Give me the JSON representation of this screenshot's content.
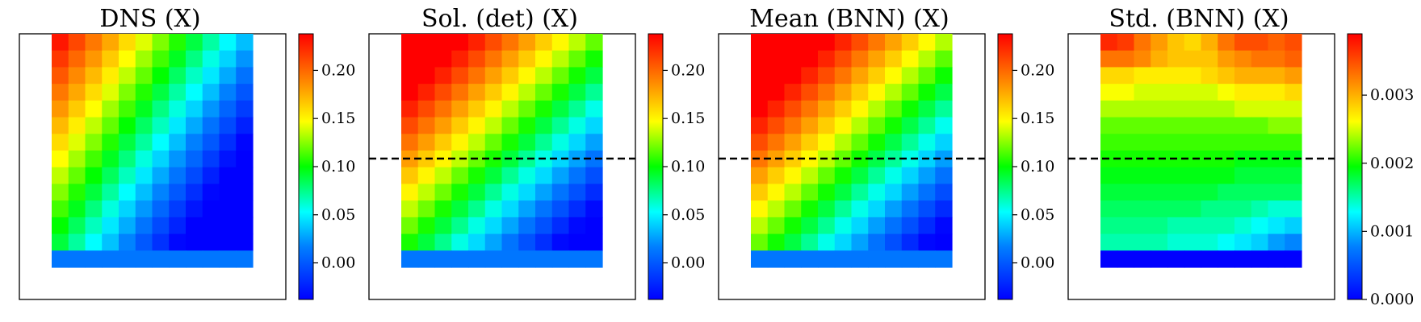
{
  "chart_data": [
    {
      "type": "heatmap",
      "title": "DNS (X)",
      "grid_rows": 14,
      "grid_cols": 12,
      "colorbar": {
        "min": -0.038,
        "max": 0.238,
        "ticks": [
          "0.00",
          "0.05",
          "0.10",
          "0.15",
          "0.20"
        ],
        "tick_values": [
          0.0,
          0.05,
          0.1,
          0.15,
          0.2
        ]
      },
      "dashed_line": false,
      "values": [
        [
          0.23,
          0.212,
          0.194,
          0.177,
          0.159,
          0.141,
          0.123,
          0.106,
          0.088,
          0.07,
          0.052,
          0.035
        ],
        [
          0.218,
          0.2,
          0.183,
          0.165,
          0.147,
          0.129,
          0.112,
          0.094,
          0.076,
          0.058,
          0.041,
          0.023
        ],
        [
          0.206,
          0.188,
          0.171,
          0.153,
          0.135,
          0.118,
          0.1,
          0.082,
          0.064,
          0.047,
          0.029,
          0.011
        ],
        [
          0.194,
          0.177,
          0.159,
          0.141,
          0.123,
          0.106,
          0.088,
          0.07,
          0.053,
          0.035,
          0.017,
          -0.001
        ],
        [
          0.183,
          0.165,
          0.147,
          0.129,
          0.112,
          0.094,
          0.076,
          0.059,
          0.041,
          0.023,
          0.005,
          -0.012
        ],
        [
          0.171,
          0.153,
          0.135,
          0.118,
          0.1,
          0.082,
          0.065,
          0.047,
          0.029,
          0.011,
          -0.006,
          -0.024
        ],
        [
          0.159,
          0.141,
          0.124,
          0.106,
          0.088,
          0.071,
          0.053,
          0.035,
          0.017,
          0.0,
          -0.018,
          -0.036
        ],
        [
          0.147,
          0.13,
          0.112,
          0.094,
          0.077,
          0.059,
          0.041,
          0.023,
          0.006,
          -0.012,
          -0.03,
          -0.038
        ],
        [
          0.135,
          0.118,
          0.1,
          0.083,
          0.065,
          0.047,
          0.029,
          0.012,
          -0.006,
          -0.024,
          -0.038,
          -0.038
        ],
        [
          0.124,
          0.106,
          0.089,
          0.071,
          0.053,
          0.035,
          0.018,
          0.0,
          -0.018,
          -0.035,
          -0.038,
          -0.038
        ],
        [
          0.112,
          0.095,
          0.077,
          0.059,
          0.041,
          0.024,
          0.006,
          -0.012,
          -0.029,
          -0.038,
          -0.038,
          -0.038
        ],
        [
          0.1,
          0.083,
          0.065,
          0.047,
          0.03,
          0.012,
          -0.006,
          -0.023,
          -0.038,
          -0.038,
          -0.038,
          -0.038
        ],
        [
          0.089,
          0.071,
          0.053,
          0.036,
          0.018,
          0.0,
          -0.017,
          -0.035,
          -0.038,
          -0.038,
          -0.038,
          -0.038
        ],
        [
          0.013,
          0.013,
          0.013,
          0.013,
          0.013,
          0.013,
          0.013,
          0.013,
          0.013,
          0.013,
          0.013,
          0.013
        ]
      ]
    },
    {
      "type": "heatmap",
      "title": "Sol. (det) (X)",
      "grid_rows": 14,
      "grid_cols": 12,
      "colorbar": {
        "min": -0.038,
        "max": 0.238,
        "ticks": [
          "0.00",
          "0.05",
          "0.10",
          "0.15",
          "0.20"
        ],
        "tick_values": [
          0.0,
          0.05,
          0.1,
          0.15,
          0.2
        ]
      },
      "dashed_line": true,
      "values": [
        [
          0.238,
          0.238,
          0.238,
          0.238,
          0.226,
          0.21,
          0.195,
          0.18,
          0.164,
          0.149,
          0.134,
          0.118
        ],
        [
          0.238,
          0.238,
          0.238,
          0.226,
          0.211,
          0.195,
          0.18,
          0.165,
          0.149,
          0.134,
          0.118,
          0.103
        ],
        [
          0.238,
          0.238,
          0.226,
          0.211,
          0.196,
          0.18,
          0.165,
          0.149,
          0.134,
          0.119,
          0.103,
          0.088
        ],
        [
          0.238,
          0.226,
          0.211,
          0.196,
          0.18,
          0.165,
          0.15,
          0.134,
          0.119,
          0.104,
          0.088,
          0.073
        ],
        [
          0.226,
          0.211,
          0.196,
          0.18,
          0.165,
          0.15,
          0.134,
          0.119,
          0.104,
          0.088,
          0.073,
          0.057
        ],
        [
          0.211,
          0.196,
          0.181,
          0.165,
          0.15,
          0.135,
          0.119,
          0.104,
          0.088,
          0.073,
          0.058,
          0.042
        ],
        [
          0.196,
          0.181,
          0.165,
          0.15,
          0.135,
          0.119,
          0.104,
          0.089,
          0.073,
          0.058,
          0.042,
          0.027
        ],
        [
          0.181,
          0.165,
          0.15,
          0.135,
          0.119,
          0.104,
          0.089,
          0.073,
          0.058,
          0.042,
          0.027,
          0.012
        ],
        [
          0.166,
          0.15,
          0.135,
          0.119,
          0.104,
          0.089,
          0.073,
          0.058,
          0.043,
          0.027,
          0.012,
          -0.004
        ],
        [
          0.15,
          0.135,
          0.12,
          0.104,
          0.089,
          0.073,
          0.058,
          0.043,
          0.027,
          0.012,
          -0.003,
          -0.019
        ],
        [
          0.135,
          0.12,
          0.104,
          0.089,
          0.074,
          0.058,
          0.043,
          0.027,
          0.012,
          -0.003,
          -0.019,
          -0.034
        ],
        [
          0.12,
          0.104,
          0.089,
          0.074,
          0.058,
          0.043,
          0.028,
          0.012,
          -0.003,
          -0.019,
          -0.034,
          -0.038
        ],
        [
          0.104,
          0.089,
          0.074,
          0.058,
          0.043,
          0.028,
          0.012,
          -0.003,
          -0.018,
          -0.034,
          -0.038,
          -0.038
        ],
        [
          0.013,
          0.013,
          0.013,
          0.013,
          0.013,
          0.013,
          0.013,
          0.013,
          0.013,
          0.013,
          0.013,
          0.013
        ]
      ]
    },
    {
      "type": "heatmap",
      "title": "Mean (BNN) (X)",
      "grid_rows": 14,
      "grid_cols": 12,
      "colorbar": {
        "min": -0.038,
        "max": 0.238,
        "ticks": [
          "0.00",
          "0.05",
          "0.10",
          "0.15",
          "0.20"
        ],
        "tick_values": [
          0.0,
          0.05,
          0.1,
          0.15,
          0.2
        ]
      },
      "dashed_line": true,
      "values": [
        [
          0.238,
          0.238,
          0.238,
          0.238,
          0.238,
          0.225,
          0.21,
          0.194,
          0.179,
          0.164,
          0.148,
          0.133
        ],
        [
          0.238,
          0.238,
          0.238,
          0.238,
          0.225,
          0.21,
          0.194,
          0.179,
          0.164,
          0.148,
          0.133,
          0.117
        ],
        [
          0.238,
          0.238,
          0.238,
          0.225,
          0.21,
          0.195,
          0.179,
          0.164,
          0.148,
          0.133,
          0.118,
          0.102
        ],
        [
          0.238,
          0.238,
          0.225,
          0.21,
          0.195,
          0.179,
          0.164,
          0.149,
          0.133,
          0.118,
          0.102,
          0.087
        ],
        [
          0.238,
          0.225,
          0.21,
          0.195,
          0.179,
          0.164,
          0.149,
          0.133,
          0.118,
          0.102,
          0.087,
          0.072
        ],
        [
          0.225,
          0.21,
          0.195,
          0.18,
          0.164,
          0.149,
          0.133,
          0.118,
          0.103,
          0.087,
          0.072,
          0.056
        ],
        [
          0.21,
          0.195,
          0.18,
          0.164,
          0.149,
          0.133,
          0.118,
          0.103,
          0.087,
          0.072,
          0.057,
          0.041
        ],
        [
          0.195,
          0.18,
          0.164,
          0.149,
          0.134,
          0.118,
          0.103,
          0.087,
          0.072,
          0.057,
          0.041,
          0.026
        ],
        [
          0.18,
          0.164,
          0.149,
          0.134,
          0.118,
          0.103,
          0.088,
          0.072,
          0.057,
          0.041,
          0.026,
          0.011
        ],
        [
          0.165,
          0.149,
          0.134,
          0.118,
          0.103,
          0.088,
          0.072,
          0.057,
          0.042,
          0.026,
          0.011,
          -0.005
        ],
        [
          0.149,
          0.134,
          0.119,
          0.103,
          0.088,
          0.072,
          0.057,
          0.042,
          0.026,
          0.011,
          -0.005,
          -0.02
        ],
        [
          0.134,
          0.119,
          0.103,
          0.088,
          0.073,
          0.057,
          0.042,
          0.026,
          0.011,
          -0.004,
          -0.02,
          -0.035
        ],
        [
          0.119,
          0.103,
          0.088,
          0.073,
          0.057,
          0.042,
          0.027,
          0.011,
          -0.004,
          -0.02,
          -0.035,
          -0.038
        ],
        [
          0.013,
          0.013,
          0.013,
          0.013,
          0.013,
          0.013,
          0.013,
          0.013,
          0.013,
          0.013,
          0.013,
          0.013
        ]
      ]
    },
    {
      "type": "heatmap",
      "title": "Std. (BNN) (X)",
      "grid_rows": 14,
      "grid_cols": 12,
      "colorbar": {
        "min": 0.0,
        "max": 0.0039,
        "ticks": [
          "0.000",
          "0.001",
          "0.002",
          "0.003"
        ],
        "tick_values": [
          0.0,
          0.001,
          0.002,
          0.003
        ]
      },
      "dashed_line": true,
      "values": [
        [
          0.0037,
          0.0036,
          0.0033,
          0.0031,
          0.0029,
          0.0028,
          0.003,
          0.0033,
          0.0035,
          0.0035,
          0.0034,
          0.0035
        ],
        [
          0.0033,
          0.0033,
          0.0032,
          0.003,
          0.0029,
          0.0029,
          0.0029,
          0.0031,
          0.0032,
          0.0033,
          0.0033,
          0.0034
        ],
        [
          0.0028,
          0.0028,
          0.0027,
          0.0027,
          0.0027,
          0.0027,
          0.0028,
          0.0029,
          0.003,
          0.003,
          0.003,
          0.0031
        ],
        [
          0.0026,
          0.0026,
          0.0025,
          0.0025,
          0.0025,
          0.0025,
          0.0025,
          0.0026,
          0.0027,
          0.0027,
          0.0027,
          0.0028
        ],
        [
          0.0024,
          0.0024,
          0.0024,
          0.0024,
          0.0024,
          0.0024,
          0.0024,
          0.0024,
          0.0025,
          0.0025,
          0.0025,
          0.0025
        ],
        [
          0.0022,
          0.0022,
          0.0022,
          0.0022,
          0.0022,
          0.0022,
          0.0022,
          0.0022,
          0.0022,
          0.0022,
          0.0023,
          0.0023
        ],
        [
          0.0021,
          0.0021,
          0.0021,
          0.0021,
          0.0021,
          0.0021,
          0.0021,
          0.0021,
          0.0021,
          0.0021,
          0.0021,
          0.0021
        ],
        [
          0.002,
          0.002,
          0.002,
          0.002,
          0.002,
          0.002,
          0.002,
          0.002,
          0.0019,
          0.0019,
          0.0019,
          0.0019
        ],
        [
          0.0019,
          0.0019,
          0.0019,
          0.0019,
          0.0019,
          0.0019,
          0.0019,
          0.0019,
          0.0018,
          0.0018,
          0.0018,
          0.0018
        ],
        [
          0.0018,
          0.0018,
          0.0018,
          0.0018,
          0.0018,
          0.0018,
          0.0018,
          0.0017,
          0.0017,
          0.0017,
          0.0017,
          0.0017
        ],
        [
          0.0017,
          0.0017,
          0.0017,
          0.0017,
          0.0017,
          0.0017,
          0.0016,
          0.0016,
          0.0016,
          0.0015,
          0.0014,
          0.0014
        ],
        [
          0.0016,
          0.0016,
          0.0016,
          0.0016,
          0.0015,
          0.0015,
          0.0015,
          0.0015,
          0.0014,
          0.0013,
          0.0012,
          0.0011
        ],
        [
          0.0015,
          0.0015,
          0.0015,
          0.0015,
          0.0014,
          0.0014,
          0.0014,
          0.0013,
          0.0012,
          0.0011,
          0.0009,
          0.0008
        ],
        [
          0.0,
          0.0,
          0.0,
          0.0,
          0.0,
          0.0,
          0.0,
          0.0,
          0.0,
          0.0,
          0.0,
          0.0
        ]
      ]
    }
  ]
}
